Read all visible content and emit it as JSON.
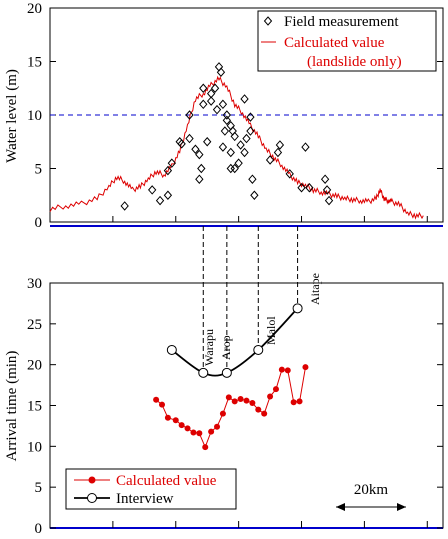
{
  "chart_data": [
    {
      "type": "scatter",
      "ylabel": "Water level (m)",
      "ylim": [
        0,
        20
      ],
      "yticks": [
        0,
        5,
        10,
        15,
        20
      ],
      "xlim": [
        0,
        100
      ],
      "reference_line": 10,
      "legend_placement": "top-right",
      "series": [
        {
          "name": "Field measurement",
          "marker": "diamond",
          "color": "#000000",
          "points": [
            [
              19,
              1.5
            ],
            [
              26,
              3.0
            ],
            [
              28,
              2.0
            ],
            [
              30,
              2.5
            ],
            [
              30,
              4.8
            ],
            [
              31,
              5.5
            ],
            [
              33,
              7.5
            ],
            [
              33.5,
              7.3
            ],
            [
              35.5,
              7.8
            ],
            [
              35.5,
              10.0
            ],
            [
              37,
              6.8
            ],
            [
              38,
              6.3
            ],
            [
              38,
              4.0
            ],
            [
              38.5,
              5.0
            ],
            [
              39,
              11.0
            ],
            [
              39,
              12.5
            ],
            [
              40,
              7.5
            ],
            [
              41,
              11.3
            ],
            [
              41,
              12.0
            ],
            [
              42,
              12.5
            ],
            [
              42.5,
              10.5
            ],
            [
              43,
              14.5
            ],
            [
              43.5,
              14.0
            ],
            [
              44.5,
              8.5
            ],
            [
              44,
              7.0
            ],
            [
              44,
              11.0
            ],
            [
              45,
              10.0
            ],
            [
              45,
              9.5
            ],
            [
              46,
              9.0
            ],
            [
              46.5,
              8.5
            ],
            [
              46,
              6.5
            ],
            [
              46,
              5.0
            ],
            [
              47,
              5.0
            ],
            [
              47,
              8.0
            ],
            [
              48,
              5.5
            ],
            [
              48.5,
              7.2
            ],
            [
              49.5,
              6.5
            ],
            [
              49.5,
              11.5
            ],
            [
              50,
              7.8
            ],
            [
              51,
              8.5
            ],
            [
              51,
              9.8
            ],
            [
              51.5,
              4.0
            ],
            [
              52,
              2.5
            ],
            [
              56,
              5.8
            ],
            [
              58,
              6.5
            ],
            [
              58.5,
              7.2
            ],
            [
              61,
              4.5
            ],
            [
              64,
              3.2
            ],
            [
              65,
              7.0
            ],
            [
              66,
              3.2
            ],
            [
              70,
              4.0
            ],
            [
              70.5,
              3.0
            ],
            [
              71,
              2.0
            ]
          ]
        },
        {
          "name": "Calculated value",
          "name_line2": "(landslide only)",
          "marker": "line",
          "color": "#dd0000",
          "points": [
            [
              0,
              1.2
            ],
            [
              4,
              1.5
            ],
            [
              8,
              1.7
            ],
            [
              12,
              2.2
            ],
            [
              15,
              3.3
            ],
            [
              17,
              4.2
            ],
            [
              19,
              3.8
            ],
            [
              21,
              3.0
            ],
            [
              23,
              3.3
            ],
            [
              25,
              4.0
            ],
            [
              27,
              4.7
            ],
            [
              29,
              4.4
            ],
            [
              31,
              5.2
            ],
            [
              33,
              6.6
            ],
            [
              35,
              9.0
            ],
            [
              37,
              11.5
            ],
            [
              39,
              12.0
            ],
            [
              41,
              12.8
            ],
            [
              43,
              13.4
            ],
            [
              45,
              12.6
            ],
            [
              47,
              11.0
            ],
            [
              49,
              10.2
            ],
            [
              51,
              9.0
            ],
            [
              53,
              8.0
            ],
            [
              55,
              6.8
            ],
            [
              57,
              6.0
            ],
            [
              59,
              5.3
            ],
            [
              61,
              4.4
            ],
            [
              63,
              3.7
            ],
            [
              65,
              3.4
            ],
            [
              67,
              3.0
            ],
            [
              69,
              2.8
            ],
            [
              71,
              2.6
            ],
            [
              73,
              2.4
            ],
            [
              75,
              2.2
            ],
            [
              77,
              2.1
            ],
            [
              79,
              2.0
            ],
            [
              81,
              1.9
            ],
            [
              83,
              2.2
            ],
            [
              84,
              3.0
            ],
            [
              85,
              2.2
            ],
            [
              86,
              2.0
            ],
            [
              87,
              1.9
            ],
            [
              89,
              1.6
            ],
            [
              91,
              0.8
            ],
            [
              93,
              0.6
            ],
            [
              95,
              0.6
            ]
          ]
        }
      ]
    },
    {
      "type": "line",
      "ylabel": "Arrival time (min)",
      "ylim": [
        0,
        30
      ],
      "yticks": [
        0,
        5,
        10,
        15,
        20,
        25,
        30
      ],
      "xlim": [
        0,
        100
      ],
      "legend_placement": "bottom-left",
      "scale_bar": {
        "label": "20km"
      },
      "place_labels": [
        "Warapu",
        "Arop",
        "Malol",
        "Aitape"
      ],
      "series": [
        {
          "name": "Calculated value",
          "marker": "filled-circle",
          "color": "#dd0000",
          "points": [
            [
              27,
              15.7
            ],
            [
              28.5,
              15.1
            ],
            [
              30,
              13.5
            ],
            [
              32,
              13.2
            ],
            [
              33.5,
              12.6
            ],
            [
              35,
              12.2
            ],
            [
              36.5,
              11.7
            ],
            [
              38,
              11.6
            ],
            [
              39.5,
              9.9
            ],
            [
              41,
              11.8
            ],
            [
              42.5,
              12.4
            ],
            [
              44,
              14.0
            ],
            [
              45.5,
              16.0
            ],
            [
              47,
              15.5
            ],
            [
              48.5,
              15.8
            ],
            [
              50,
              15.6
            ],
            [
              51.5,
              15.3
            ],
            [
              53,
              14.5
            ],
            [
              54.5,
              14.0
            ],
            [
              56,
              16.1
            ],
            [
              57.5,
              17.0
            ],
            [
              59,
              19.4
            ],
            [
              60.5,
              19.3
            ],
            [
              62,
              15.4
            ],
            [
              63.5,
              15.5
            ],
            [
              65,
              19.7
            ]
          ]
        },
        {
          "name": "Interview",
          "marker": "open-circle",
          "color": "#000000",
          "points": [
            [
              31,
              21.8
            ],
            [
              39,
              19.0
            ],
            [
              45,
              19.0
            ],
            [
              53,
              21.8
            ],
            [
              63,
              26.9
            ]
          ]
        }
      ]
    }
  ]
}
